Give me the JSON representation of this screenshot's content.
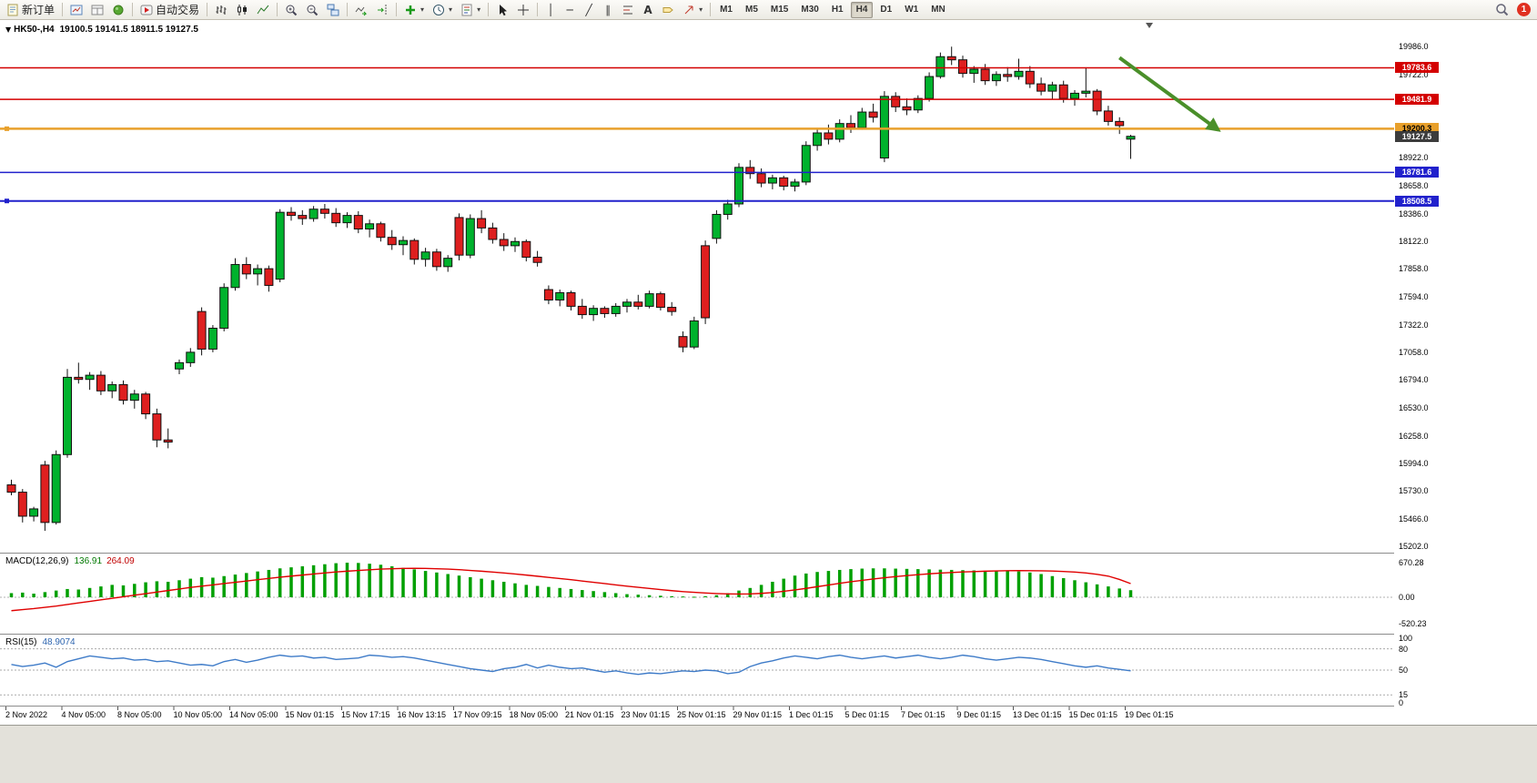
{
  "toolbar": {
    "new_order": "新订单",
    "auto_trading": "自动交易",
    "timeframes": [
      "M1",
      "M5",
      "M15",
      "M30",
      "H1",
      "H4",
      "D1",
      "W1",
      "MN"
    ],
    "active_timeframe": "H4",
    "notification_count": "1"
  },
  "icons": {
    "caret": "▾",
    "collapse": "▼",
    "vline": "│",
    "hline": "─",
    "trendline": "╱",
    "channel": "∥",
    "text_tool": "A"
  },
  "chart": {
    "header": {
      "symbol": "HK50-,H4",
      "ohlc": "19100.5 19141.5 18911.5 19127.5"
    },
    "price_axis_ticks": [
      "19986.0",
      "19722.0",
      "19458.0",
      "19194.0",
      "18922.0",
      "18658.0",
      "18386.0",
      "18122.0",
      "17858.0",
      "17594.0",
      "17322.0",
      "17058.0",
      "16794.0",
      "16530.0",
      "16258.0",
      "15994.0",
      "15730.0",
      "15466.0",
      "15202.0"
    ],
    "hlines": [
      {
        "value": 19783.6,
        "label": "19783.6",
        "color": "#D40000",
        "width": 1.5,
        "text_color": "#ffffff",
        "handle": false
      },
      {
        "value": 19481.9,
        "label": "19481.9",
        "color": "#D40000",
        "width": 1.5,
        "text_color": "#ffffff",
        "handle": false
      },
      {
        "value": 19200.3,
        "label": "19200.3",
        "color": "#E8A02B",
        "width": 2.5,
        "text_color": "#000000",
        "handle": true
      },
      {
        "value": 18781.6,
        "label": "18781.6",
        "color": "#2121CC",
        "width": 1.5,
        "text_color": "#ffffff",
        "handle": false
      },
      {
        "value": 18508.5,
        "label": "18508.5",
        "color": "#2121CC",
        "width": 2,
        "text_color": "#ffffff",
        "handle": true
      }
    ],
    "current_price": {
      "value": 19127.5,
      "label": "19127.5",
      "bg": "#3C3C3C",
      "text_color": "#ffffff"
    },
    "colors": {
      "bull": "#00B22D",
      "bear": "#DE1F1F",
      "wick": "#111111",
      "macd_hist": "#00A000",
      "macd_signal": "#E00000",
      "rsi_line": "#3E7BC8"
    }
  },
  "macd": {
    "title": "MACD(12,26,9)",
    "value_macd": "136.91",
    "value_signal": "264.09",
    "axis": [
      "670.28",
      "0.00",
      "-520.23"
    ]
  },
  "rsi": {
    "title": "RSI(15)",
    "value": "48.9074",
    "axis": [
      "100",
      "80",
      "50",
      "15",
      "0"
    ],
    "levels": [
      80,
      50,
      15
    ]
  },
  "time_axis": {
    "labels": [
      "2 Nov 2022",
      "4 Nov 05:00",
      "8 Nov 05:00",
      "10 Nov 05:00",
      "14 Nov 05:00",
      "15 Nov 01:15",
      "15 Nov 17:15",
      "16 Nov 13:15",
      "17 Nov 09:15",
      "18 Nov 05:00",
      "21 Nov 01:15",
      "23 Nov 01:15",
      "25 Nov 01:15",
      "29 Nov 01:15",
      "1 Dec 01:15",
      "5 Dec 01:15",
      "7 Dec 01:15",
      "9 Dec 01:15",
      "13 Dec 01:15",
      "15 Dec 01:15",
      "19 Dec 01:15"
    ]
  },
  "chart_data": {
    "type": "candlestick",
    "symbol": "HK50-,H4",
    "timeframe": "H4",
    "price_range": [
      15141,
      20241
    ],
    "candles": [
      [
        15790,
        15840,
        15690,
        15720
      ],
      [
        15720,
        15750,
        15430,
        15490
      ],
      [
        15490,
        15580,
        15440,
        15560
      ],
      [
        15980,
        16020,
        15350,
        15430
      ],
      [
        15430,
        16120,
        15410,
        16080
      ],
      [
        16080,
        16900,
        16050,
        16820
      ],
      [
        16820,
        16960,
        16760,
        16800
      ],
      [
        16800,
        16870,
        16700,
        16840
      ],
      [
        16840,
        16880,
        16650,
        16690
      ],
      [
        16690,
        16780,
        16620,
        16750
      ],
      [
        16750,
        16790,
        16560,
        16600
      ],
      [
        16600,
        16700,
        16520,
        16660
      ],
      [
        16660,
        16680,
        16420,
        16470
      ],
      [
        16470,
        16520,
        16150,
        16220
      ],
      [
        16220,
        16330,
        16140,
        16200
      ],
      [
        16900,
        16990,
        16850,
        16960
      ],
      [
        16960,
        17100,
        16920,
        17060
      ],
      [
        17450,
        17490,
        17030,
        17090
      ],
      [
        17090,
        17320,
        17060,
        17290
      ],
      [
        17290,
        17720,
        17260,
        17680
      ],
      [
        17680,
        17960,
        17650,
        17900
      ],
      [
        17900,
        17970,
        17760,
        17810
      ],
      [
        17810,
        17900,
        17700,
        17860
      ],
      [
        17860,
        17890,
        17640,
        17700
      ],
      [
        17760,
        18430,
        17730,
        18400
      ],
      [
        18400,
        18450,
        18320,
        18370
      ],
      [
        18370,
        18420,
        18280,
        18340
      ],
      [
        18340,
        18460,
        18310,
        18430
      ],
      [
        18430,
        18480,
        18340,
        18390
      ],
      [
        18390,
        18440,
        18260,
        18300
      ],
      [
        18300,
        18400,
        18250,
        18370
      ],
      [
        18370,
        18410,
        18200,
        18240
      ],
      [
        18240,
        18330,
        18160,
        18290
      ],
      [
        18290,
        18310,
        18120,
        18160
      ],
      [
        18160,
        18230,
        18040,
        18090
      ],
      [
        18090,
        18170,
        17990,
        18130
      ],
      [
        18130,
        18150,
        17900,
        17950
      ],
      [
        17950,
        18060,
        17880,
        18020
      ],
      [
        18020,
        18050,
        17840,
        17880
      ],
      [
        17880,
        17990,
        17830,
        17960
      ],
      [
        18350,
        18390,
        17940,
        17990
      ],
      [
        17990,
        18380,
        17960,
        18340
      ],
      [
        18340,
        18420,
        18200,
        18250
      ],
      [
        18250,
        18300,
        18100,
        18140
      ],
      [
        18140,
        18200,
        18030,
        18080
      ],
      [
        18080,
        18160,
        18020,
        18120
      ],
      [
        18120,
        18140,
        17930,
        17970
      ],
      [
        17970,
        18030,
        17880,
        17920
      ],
      [
        17660,
        17700,
        17520,
        17560
      ],
      [
        17560,
        17660,
        17500,
        17630
      ],
      [
        17630,
        17650,
        17460,
        17500
      ],
      [
        17500,
        17570,
        17380,
        17420
      ],
      [
        17420,
        17510,
        17360,
        17480
      ],
      [
        17480,
        17500,
        17390,
        17430
      ],
      [
        17430,
        17530,
        17400,
        17500
      ],
      [
        17500,
        17570,
        17440,
        17540
      ],
      [
        17540,
        17610,
        17470,
        17500
      ],
      [
        17500,
        17650,
        17480,
        17620
      ],
      [
        17620,
        17640,
        17460,
        17490
      ],
      [
        17490,
        17540,
        17410,
        17450
      ],
      [
        17210,
        17260,
        17060,
        17110
      ],
      [
        17110,
        17400,
        17090,
        17360
      ],
      [
        18080,
        18130,
        17330,
        17390
      ],
      [
        18150,
        18420,
        18100,
        18380
      ],
      [
        18380,
        18520,
        18330,
        18480
      ],
      [
        18480,
        18870,
        18450,
        18830
      ],
      [
        18830,
        18900,
        18720,
        18770
      ],
      [
        18770,
        18820,
        18640,
        18680
      ],
      [
        18680,
        18760,
        18620,
        18730
      ],
      [
        18730,
        18750,
        18610,
        18650
      ],
      [
        18650,
        18720,
        18600,
        18690
      ],
      [
        18690,
        19080,
        18660,
        19040
      ],
      [
        19040,
        19200,
        18990,
        19160
      ],
      [
        19160,
        19240,
        19050,
        19100
      ],
      [
        19100,
        19290,
        19070,
        19250
      ],
      [
        19250,
        19330,
        19160,
        19210
      ],
      [
        19210,
        19400,
        19190,
        19360
      ],
      [
        19360,
        19440,
        19260,
        19310
      ],
      [
        18920,
        19560,
        18880,
        19510
      ],
      [
        19510,
        19550,
        19360,
        19410
      ],
      [
        19410,
        19490,
        19330,
        19380
      ],
      [
        19380,
        19520,
        19350,
        19490
      ],
      [
        19490,
        19740,
        19460,
        19700
      ],
      [
        19700,
        19930,
        19680,
        19890
      ],
      [
        19890,
        19986,
        19810,
        19860
      ],
      [
        19860,
        19900,
        19690,
        19730
      ],
      [
        19730,
        19800,
        19640,
        19770
      ],
      [
        19770,
        19820,
        19620,
        19660
      ],
      [
        19660,
        19750,
        19610,
        19720
      ],
      [
        19720,
        19790,
        19650,
        19700
      ],
      [
        19700,
        19870,
        19670,
        19750
      ],
      [
        19750,
        19800,
        19590,
        19630
      ],
      [
        19630,
        19690,
        19520,
        19560
      ],
      [
        19560,
        19650,
        19480,
        19620
      ],
      [
        19620,
        19660,
        19450,
        19490
      ],
      [
        19490,
        19570,
        19420,
        19540
      ],
      [
        19540,
        19780,
        19500,
        19560
      ],
      [
        19560,
        19580,
        19330,
        19370
      ],
      [
        19370,
        19420,
        19230,
        19270
      ],
      [
        19270,
        19310,
        19150,
        19230
      ],
      [
        19100.5,
        19141.5,
        18911.5,
        19127.5
      ]
    ],
    "macd_hist": [
      80,
      90,
      70,
      100,
      130,
      160,
      150,
      180,
      210,
      240,
      230,
      260,
      290,
      310,
      300,
      330,
      360,
      390,
      380,
      410,
      440,
      470,
      500,
      530,
      560,
      580,
      600,
      620,
      640,
      660,
      670,
      665,
      650,
      630,
      600,
      570,
      540,
      510,
      480,
      450,
      420,
      390,
      360,
      330,
      300,
      270,
      240,
      220,
      200,
      180,
      160,
      140,
      120,
      100,
      80,
      60,
      50,
      40,
      30,
      20,
      15,
      10,
      20,
      40,
      80,
      130,
      180,
      240,
      300,
      360,
      420,
      460,
      490,
      510,
      530,
      545,
      555,
      560,
      560,
      555,
      550,
      545,
      540,
      535,
      530,
      525,
      520,
      515,
      510,
      505,
      500,
      480,
      450,
      410,
      370,
      330,
      290,
      250,
      210,
      170,
      137
    ],
    "macd_signal": [
      -260,
      -240,
      -220,
      -195,
      -170,
      -140,
      -110,
      -80,
      -50,
      -20,
      10,
      40,
      70,
      100,
      130,
      160,
      190,
      215,
      240,
      265,
      290,
      315,
      340,
      365,
      390,
      410,
      430,
      450,
      470,
      490,
      505,
      520,
      532,
      545,
      552,
      558,
      560,
      558,
      552,
      545,
      535,
      520,
      505,
      488,
      470,
      450,
      430,
      408,
      385,
      362,
      340,
      315,
      290,
      265,
      240,
      215,
      192,
      170,
      148,
      128,
      110,
      95,
      82,
      72,
      65,
      62,
      65,
      75,
      92,
      115,
      142,
      172,
      205,
      238,
      270,
      300,
      328,
      354,
      378,
      400,
      420,
      438,
      454,
      468,
      480,
      490,
      498,
      505,
      510,
      514,
      516,
      515,
      512,
      508,
      500,
      488,
      470,
      445,
      410,
      345,
      264
    ],
    "macd_range": [
      -520.23,
      670.28
    ],
    "rsi_values": [
      58,
      55,
      57,
      60,
      54,
      62,
      66,
      70,
      68,
      66,
      67,
      64,
      65,
      62,
      63,
      60,
      57,
      58,
      56,
      62,
      65,
      61,
      64,
      68,
      71,
      69,
      70,
      67,
      68,
      65,
      66,
      67,
      71,
      70,
      68,
      69,
      67,
      64,
      61,
      58,
      55,
      52,
      50,
      48,
      52,
      54,
      58,
      53,
      57,
      54,
      52,
      53,
      50,
      47,
      49,
      46,
      44,
      46,
      45,
      47,
      49,
      48,
      50,
      49,
      45,
      47,
      55,
      60,
      63,
      67,
      70,
      68,
      66,
      69,
      71,
      68,
      66,
      68,
      70,
      67,
      69,
      71,
      68,
      66,
      68,
      71,
      69,
      66,
      64,
      66,
      68,
      67,
      65,
      62,
      59,
      56,
      54,
      56,
      53,
      51,
      49
    ],
    "rsi_range": [
      0,
      100
    ],
    "arrow": {
      "from_idx": 99,
      "from_price": 19880,
      "to_idx": 107.8,
      "to_price": 19190,
      "color": "#4A8F2A"
    }
  }
}
